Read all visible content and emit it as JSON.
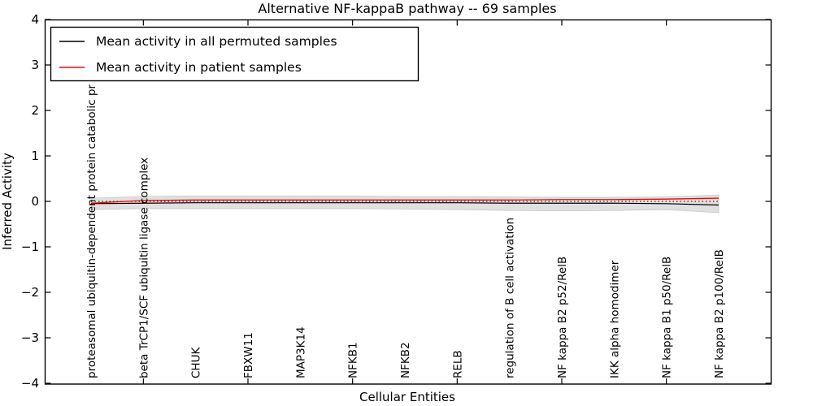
{
  "figure": {
    "title": "Alternative NF-kappaB pathway -- 69 samples",
    "xlabel": "Cellular Entities",
    "ylabel": "Inferred Activity"
  },
  "legend": {
    "items": [
      {
        "label": "Mean activity in all permuted samples",
        "color": "#000000"
      },
      {
        "label": "Mean activity in patient samples",
        "color": "#ff0000"
      }
    ]
  },
  "chart_data": {
    "type": "line",
    "title": "Alternative NF-kappaB pathway -- 69 samples",
    "xlabel": "Cellular Entities",
    "ylabel": "Inferred Activity",
    "ylim": [
      -4,
      4
    ],
    "ytick_labels": [
      "4",
      "3",
      "2",
      "1",
      "0",
      "−1",
      "−2",
      "−3",
      "−4"
    ],
    "ytick_values": [
      4,
      3,
      2,
      1,
      0,
      -1,
      -2,
      -3,
      -4
    ],
    "grid": false,
    "legend_position": "upper left",
    "categories": [
      "proteasomal ubiquitin-dependent protein catabolic pr",
      "beta TrCP1/SCF ubiquitin ligase complex",
      "CHUK",
      "FBXW11",
      "MAP3K14",
      "NFKB1",
      "NFKB2",
      "RELB",
      "regulation of B cell activation",
      "NF kappa B2 p52/RelB",
      "IKK alpha homodimer",
      "NF kappa B1 p50/RelB",
      "NF kappa B2 p100/RelB"
    ],
    "series": [
      {
        "name": "zero reference",
        "color": "#000000",
        "style": "dotted",
        "width": 1.1,
        "values": [
          0,
          0,
          0,
          0,
          0,
          0,
          0,
          0,
          0,
          0,
          0,
          0,
          0
        ]
      },
      {
        "name": "Mean activity in all permuted samples",
        "color": "#000000",
        "style": "solid",
        "width": 1.2,
        "values": [
          -0.05,
          -0.04,
          -0.03,
          -0.03,
          -0.03,
          -0.03,
          -0.03,
          -0.03,
          -0.04,
          -0.04,
          -0.04,
          -0.05,
          -0.08
        ]
      },
      {
        "name": "Mean activity in patient samples",
        "color": "#ff0000",
        "style": "solid",
        "width": 1.3,
        "values": [
          -0.04,
          0.02,
          0.03,
          0.03,
          0.03,
          0.03,
          0.03,
          0.03,
          0.03,
          0.04,
          0.04,
          0.05,
          0.07
        ]
      }
    ],
    "band": {
      "name": "permuted samples spread",
      "color": "#e0e0e0",
      "edge_color": "#c9c9c9",
      "upper": [
        0.07,
        0.11,
        0.12,
        0.12,
        0.12,
        0.12,
        0.11,
        0.11,
        0.1,
        0.09,
        0.09,
        0.1,
        0.14
      ],
      "lower": [
        -0.18,
        -0.16,
        -0.16,
        -0.16,
        -0.16,
        -0.16,
        -0.17,
        -0.18,
        -0.2,
        -0.21,
        -0.2,
        -0.18,
        -0.25
      ]
    }
  }
}
